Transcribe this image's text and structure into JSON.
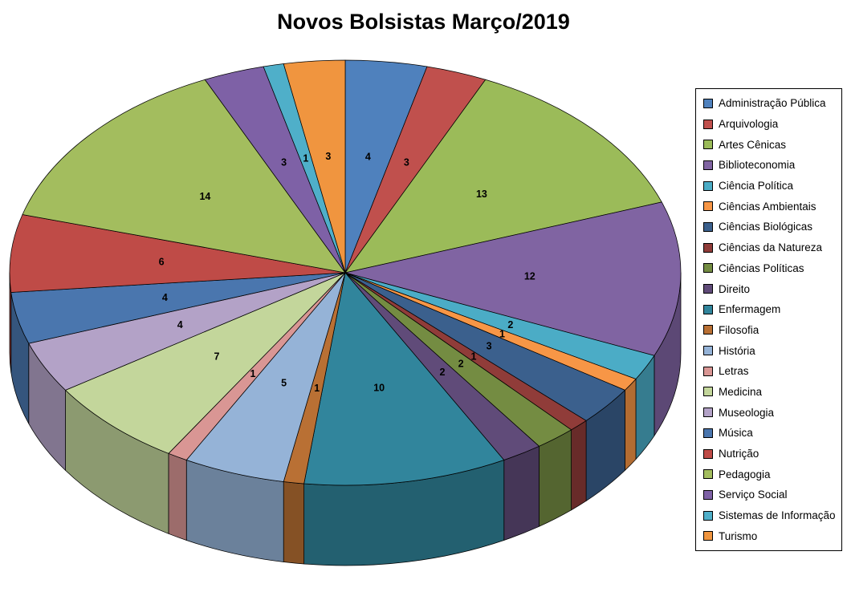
{
  "title": "Novos Bolsistas Março/2019",
  "chart_data": {
    "type": "pie",
    "style": "3d",
    "title": "Novos Bolsistas Março/2019",
    "legend_position": "right",
    "start_angle_deg": 0,
    "direction": "clockwise",
    "data_labels": "values",
    "series": [
      {
        "label": "Administração Pública",
        "value": 4,
        "color": "#4F81BD"
      },
      {
        "label": "Arquivologia",
        "value": 3,
        "color": "#C0504D"
      },
      {
        "label": "Artes Cênicas",
        "value": 13,
        "color": "#9BBB59"
      },
      {
        "label": "Biblioteconomia",
        "value": 12,
        "color": "#8064A2"
      },
      {
        "label": "Ciência Política",
        "value": 2,
        "color": "#4BACC6"
      },
      {
        "label": "Ciências Ambientais",
        "value": 1,
        "color": "#F79646"
      },
      {
        "label": "Ciências Biológicas",
        "value": 3,
        "color": "#3B608D"
      },
      {
        "label": "Ciências da Natureza",
        "value": 1,
        "color": "#903C39"
      },
      {
        "label": "Ciências Políticas",
        "value": 2,
        "color": "#748C42"
      },
      {
        "label": "Direito",
        "value": 2,
        "color": "#604B79"
      },
      {
        "label": "Enfermagem",
        "value": 10,
        "color": "#31859C"
      },
      {
        "label": "Filosofia",
        "value": 1,
        "color": "#B97034"
      },
      {
        "label": "História",
        "value": 5,
        "color": "#95B3D7"
      },
      {
        "label": "Letras",
        "value": 1,
        "color": "#D99694"
      },
      {
        "label": "Medicina",
        "value": 7,
        "color": "#C3D69B"
      },
      {
        "label": "Museologia",
        "value": 4,
        "color": "#B3A2C7"
      },
      {
        "label": "Música",
        "value": 4,
        "color": "#4A76AE"
      },
      {
        "label": "Nutrição",
        "value": 6,
        "color": "#BF4B47"
      },
      {
        "label": "Pedagogia",
        "value": 14,
        "color": "#A3BD5E"
      },
      {
        "label": "Serviço Social",
        "value": 3,
        "color": "#7E61A6"
      },
      {
        "label": "Sistemas de Informação",
        "value": 1,
        "color": "#4FAFC9"
      },
      {
        "label": "Turismo",
        "value": 3,
        "color": "#F0953F"
      }
    ]
  }
}
